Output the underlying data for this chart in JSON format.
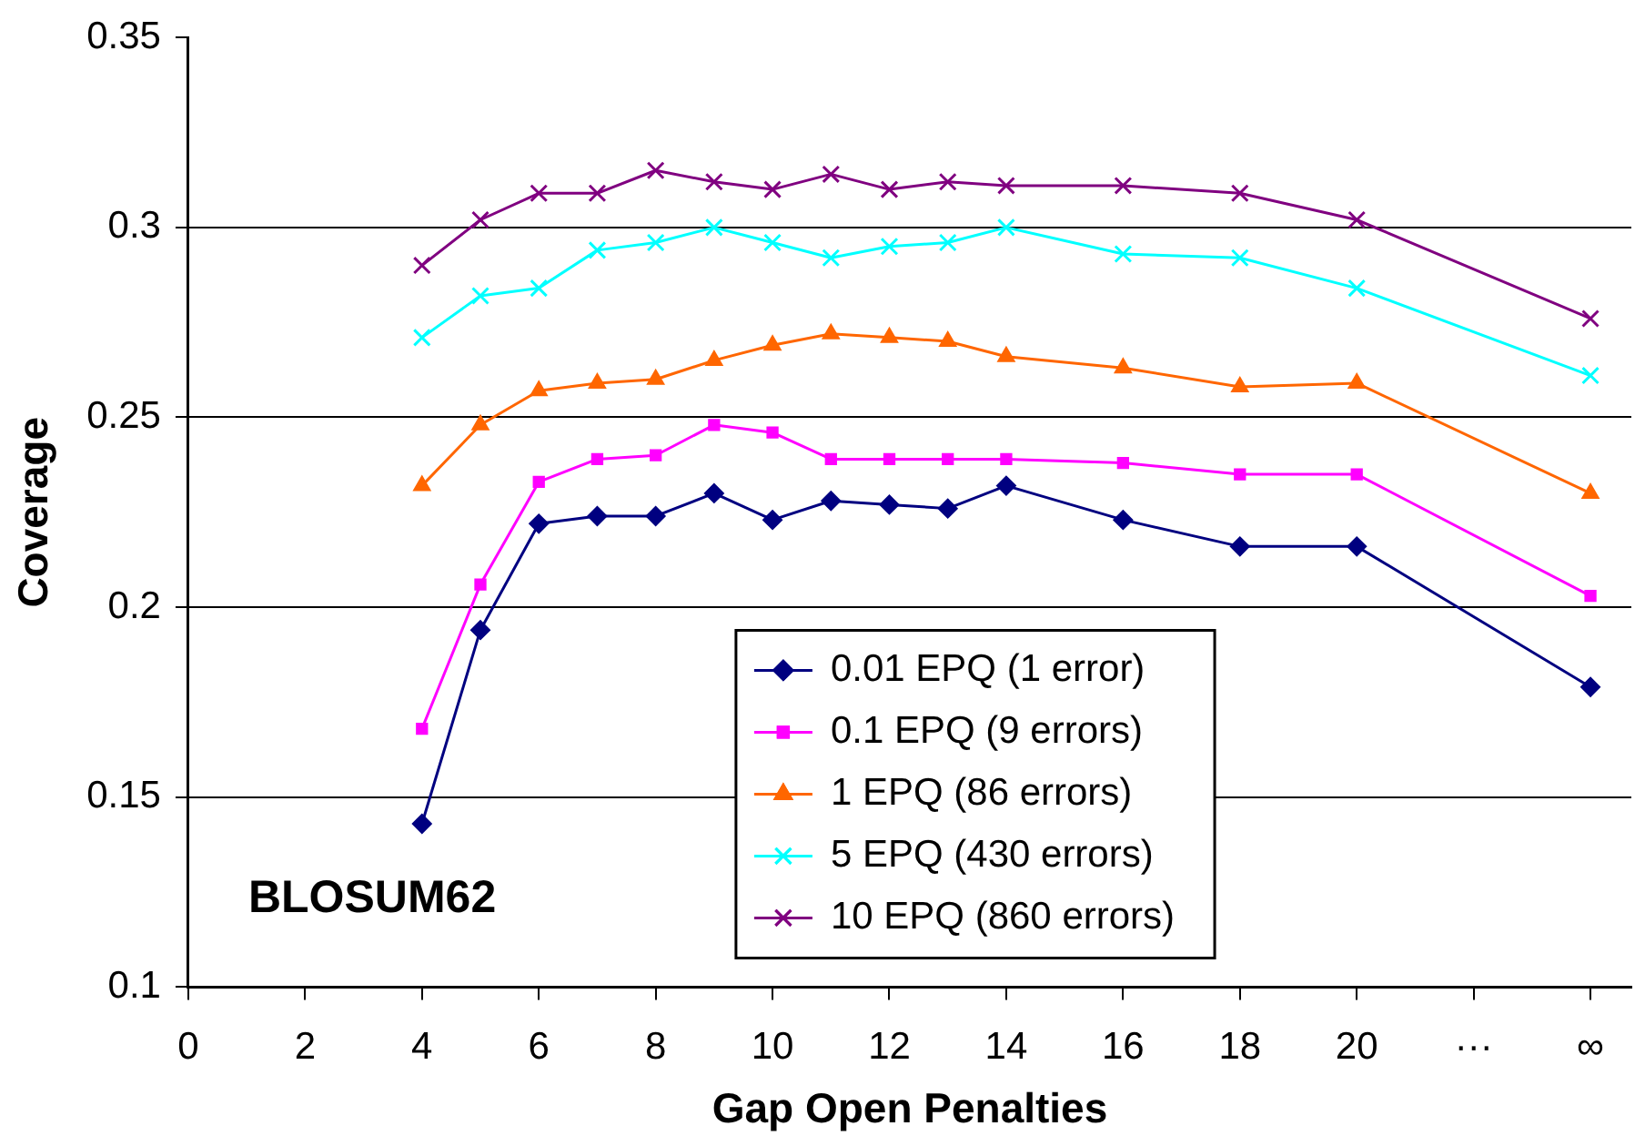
{
  "chart_data": {
    "type": "line",
    "xlabel": "Gap Open Penalties",
    "ylabel": "Coverage",
    "annotations": [
      "BLOSUM62"
    ],
    "x": [
      4,
      5,
      6,
      7,
      8,
      9,
      10,
      11,
      12,
      13,
      14,
      16,
      18,
      20,
      24
    ],
    "xlim": [
      0,
      24.7
    ],
    "xticks": [
      0,
      2,
      4,
      6,
      8,
      10,
      12,
      14,
      16,
      18,
      20,
      {
        "value": 22,
        "label": "···"
      },
      {
        "value": 24,
        "label": "∞"
      }
    ],
    "ylim": [
      0.1,
      0.35
    ],
    "yticks": [
      0.1,
      0.15,
      0.2,
      0.25,
      0.3,
      0.35
    ],
    "grid": "y",
    "legend": "bottom",
    "series": [
      {
        "name": "0.01 EPQ (1 error)",
        "color": "#000080",
        "marker": "diamond",
        "values": [
          0.143,
          0.194,
          0.222,
          0.224,
          0.224,
          0.23,
          0.223,
          0.228,
          0.227,
          0.226,
          0.232,
          0.223,
          0.216,
          0.216,
          0.179
        ]
      },
      {
        "name": "0.1 EPQ (9 errors)",
        "color": "#ff00ff",
        "marker": "square",
        "values": [
          0.168,
          0.206,
          0.233,
          0.239,
          0.24,
          0.248,
          0.246,
          0.239,
          0.239,
          0.239,
          0.239,
          0.238,
          0.235,
          0.235,
          0.203
        ]
      },
      {
        "name": "1 EPQ (86 errors)",
        "color": "#ff6600",
        "marker": "triangle",
        "values": [
          0.232,
          0.248,
          0.257,
          0.259,
          0.26,
          0.265,
          0.269,
          0.272,
          0.271,
          0.27,
          0.266,
          0.263,
          0.258,
          0.259,
          0.23
        ]
      },
      {
        "name": "5 EPQ (430 errors)",
        "color": "#00ffff",
        "marker": "cross",
        "values": [
          0.271,
          0.282,
          0.284,
          0.294,
          0.296,
          0.3,
          0.296,
          0.292,
          0.295,
          0.296,
          0.3,
          0.293,
          0.292,
          0.284,
          0.261
        ]
      },
      {
        "name": "10 EPQ (860 errors)",
        "color": "#800080",
        "marker": "cross",
        "values": [
          0.29,
          0.302,
          0.309,
          0.309,
          0.315,
          0.312,
          0.31,
          0.314,
          0.31,
          0.312,
          0.311,
          0.311,
          0.309,
          0.302,
          0.276
        ]
      }
    ]
  }
}
